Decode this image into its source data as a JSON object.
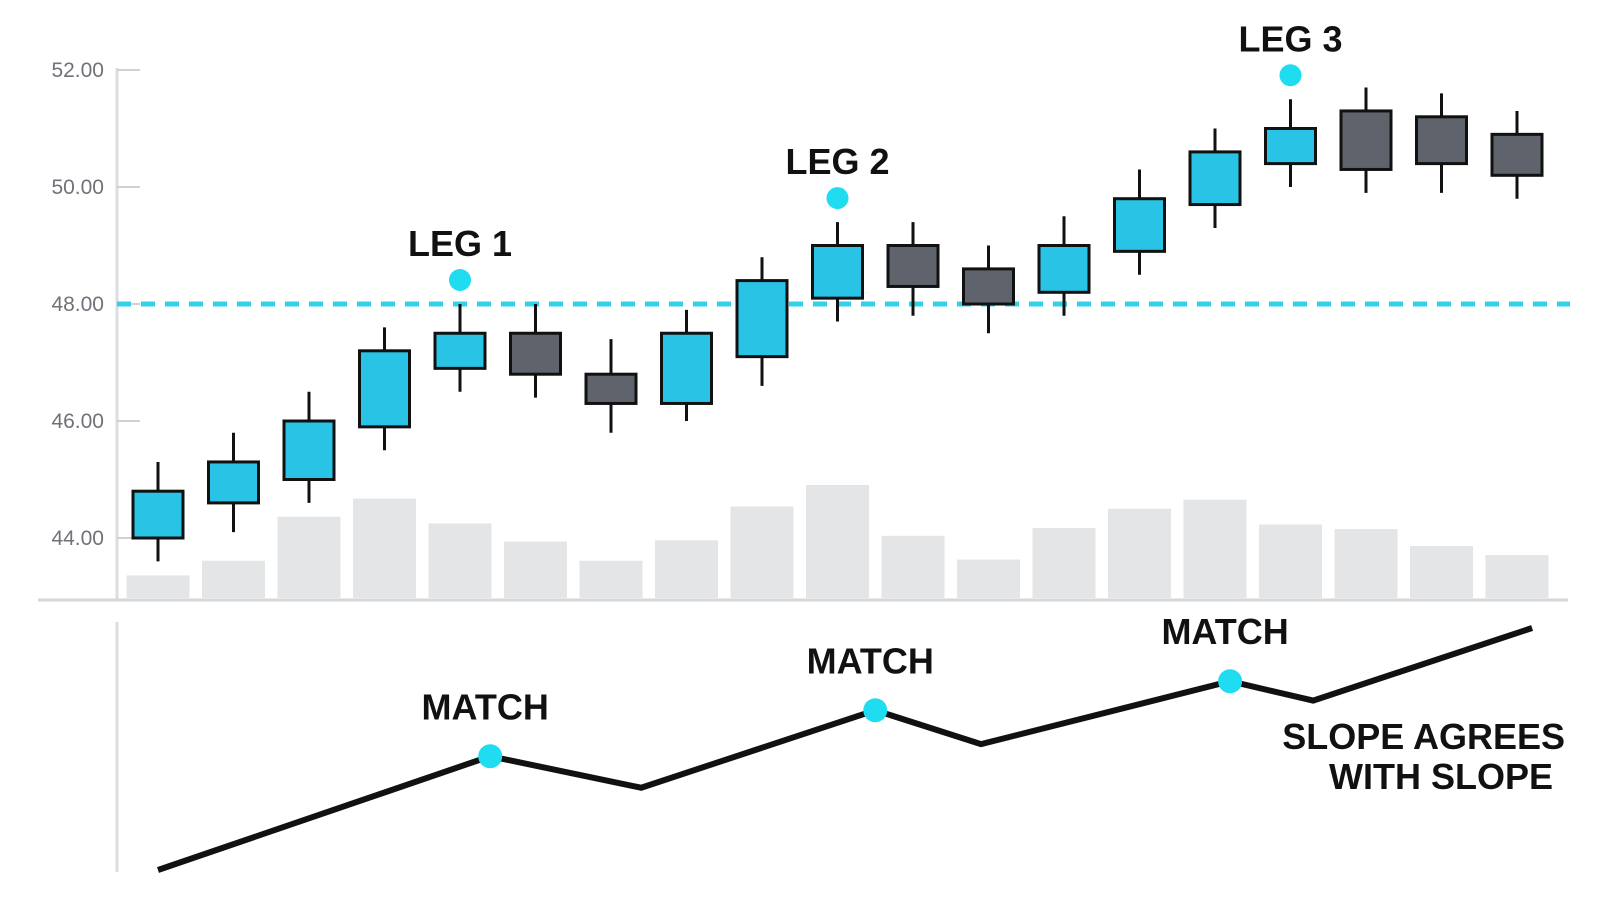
{
  "chart_data": [
    {
      "type": "candlestick",
      "title": "",
      "xlabel": "",
      "ylabel": "",
      "ylim": [
        43,
        52.2
      ],
      "y_ticks": [
        "52.00",
        "50.00",
        "48.00",
        "46.00",
        "44.00"
      ],
      "y_tick_values": [
        52,
        50,
        48,
        46,
        44
      ],
      "grid": false,
      "colors": {
        "up": "#29c3e6",
        "down": "#5f646c",
        "outline": "#111111",
        "volume": "#e4e5e7",
        "reference": "#33d1e8",
        "marker": "#1fdcf0"
      },
      "candles": [
        {
          "open": 44.0,
          "high": 45.3,
          "low": 43.6,
          "close": 44.8,
          "direction": "up"
        },
        {
          "open": 44.6,
          "high": 45.8,
          "low": 44.1,
          "close": 45.3,
          "direction": "up"
        },
        {
          "open": 45.0,
          "high": 46.5,
          "low": 44.6,
          "close": 46.0,
          "direction": "up"
        },
        {
          "open": 45.9,
          "high": 47.6,
          "low": 45.5,
          "close": 47.2,
          "direction": "up"
        },
        {
          "open": 46.9,
          "high": 48.0,
          "low": 46.5,
          "close": 47.5,
          "direction": "up"
        },
        {
          "open": 47.5,
          "high": 48.0,
          "low": 46.4,
          "close": 46.8,
          "direction": "down"
        },
        {
          "open": 46.8,
          "high": 47.4,
          "low": 45.8,
          "close": 46.3,
          "direction": "down"
        },
        {
          "open": 46.3,
          "high": 47.9,
          "low": 46.0,
          "close": 47.5,
          "direction": "up"
        },
        {
          "open": 47.1,
          "high": 48.8,
          "low": 46.6,
          "close": 48.4,
          "direction": "up"
        },
        {
          "open": 48.1,
          "high": 49.4,
          "low": 47.7,
          "close": 49.0,
          "direction": "up"
        },
        {
          "open": 49.0,
          "high": 49.4,
          "low": 47.8,
          "close": 48.3,
          "direction": "down"
        },
        {
          "open": 48.6,
          "high": 49.0,
          "low": 47.5,
          "close": 48.0,
          "direction": "down"
        },
        {
          "open": 48.2,
          "high": 49.5,
          "low": 47.8,
          "close": 49.0,
          "direction": "up"
        },
        {
          "open": 48.9,
          "high": 50.3,
          "low": 48.5,
          "close": 49.8,
          "direction": "up"
        },
        {
          "open": 49.7,
          "high": 51.0,
          "low": 49.3,
          "close": 50.6,
          "direction": "up"
        },
        {
          "open": 50.4,
          "high": 51.5,
          "low": 50.0,
          "close": 51.0,
          "direction": "up"
        },
        {
          "open": 51.3,
          "high": 51.7,
          "low": 49.9,
          "close": 50.3,
          "direction": "down"
        },
        {
          "open": 51.2,
          "high": 51.6,
          "low": 49.9,
          "close": 50.4,
          "direction": "down"
        },
        {
          "open": 50.9,
          "high": 51.3,
          "low": 49.8,
          "close": 50.2,
          "direction": "down"
        }
      ],
      "volume": [
        0.2,
        0.33,
        0.72,
        0.88,
        0.66,
        0.5,
        0.33,
        0.51,
        0.81,
        1.0,
        0.55,
        0.34,
        0.62,
        0.79,
        0.87,
        0.65,
        0.61,
        0.46,
        0.38
      ],
      "reference_line": {
        "value": 48.0,
        "style": "dashed"
      },
      "annotations": [
        {
          "label": "LEG 1",
          "candle_index": 4
        },
        {
          "label": "LEG 2",
          "candle_index": 9
        },
        {
          "label": "LEG 3",
          "candle_index": 15
        }
      ]
    },
    {
      "type": "line",
      "title": "",
      "xlabel": "",
      "ylabel": "",
      "ylim": [
        0,
        1
      ],
      "series": [
        {
          "values": [
            {
              "x": 0,
              "y": 0.0
            },
            {
              "x": 4.4,
              "y": 0.47
            },
            {
              "x": 6.4,
              "y": 0.34
            },
            {
              "x": 9.5,
              "y": 0.66
            },
            {
              "x": 10.9,
              "y": 0.52
            },
            {
              "x": 14.2,
              "y": 0.78
            },
            {
              "x": 15.3,
              "y": 0.7
            },
            {
              "x": 18.2,
              "y": 1.0
            }
          ]
        }
      ],
      "matches": [
        {
          "label": "MATCH",
          "x": 4.4,
          "y": 0.47
        },
        {
          "label": "MATCH",
          "x": 9.5,
          "y": 0.66
        },
        {
          "label": "MATCH",
          "x": 14.2,
          "y": 0.78
        }
      ],
      "note": [
        "SLOPE AGREES",
        "WITH SLOPE"
      ]
    }
  ]
}
